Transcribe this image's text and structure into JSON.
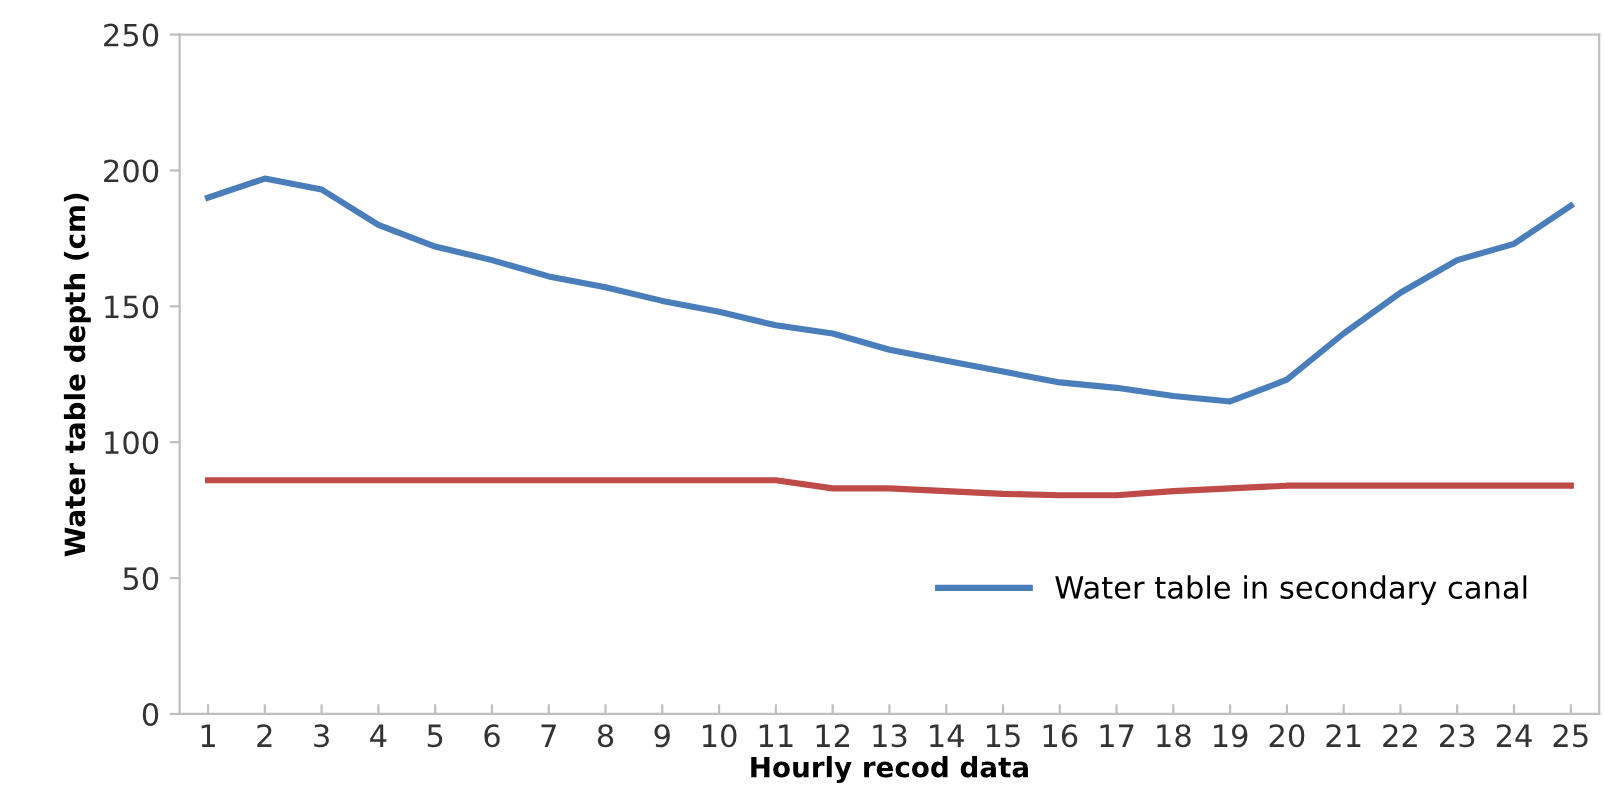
{
  "chart_data": {
    "type": "line",
    "xlabel": "Hourly recod data",
    "ylabel": "Water table depth (cm)",
    "categories": [
      "1",
      "2",
      "3",
      "4",
      "5",
      "6",
      "7",
      "8",
      "9",
      "10",
      "11",
      "12",
      "13",
      "14",
      "15",
      "16",
      "17",
      "18",
      "19",
      "20",
      "21",
      "22",
      "23",
      "24",
      "25"
    ],
    "series": [
      {
        "name": "Water table in secondary canal",
        "color": "#4a7ebb",
        "values": [
          190,
          197,
          193,
          180,
          172,
          167,
          161,
          157,
          152,
          148,
          143,
          140,
          134,
          130,
          126,
          122,
          120,
          117,
          115,
          123,
          140,
          155,
          167,
          173,
          187
        ]
      },
      {
        "color": "#be4b48",
        "values": [
          86,
          86,
          86,
          86,
          86,
          86,
          86,
          86,
          86,
          86,
          86,
          83,
          83,
          82,
          81,
          80.5,
          80.5,
          82,
          83,
          84,
          84,
          84,
          84,
          84,
          84
        ]
      }
    ],
    "ylim": [
      0,
      250
    ],
    "yticks": [
      0,
      50,
      100,
      150,
      200,
      250
    ],
    "grid": false,
    "legend": "bottom right",
    "marker": "none",
    "line_style": "solid"
  }
}
